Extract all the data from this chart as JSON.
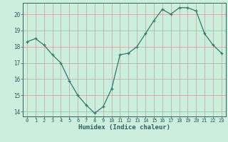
{
  "x": [
    0,
    1,
    2,
    3,
    4,
    5,
    6,
    7,
    8,
    9,
    10,
    11,
    12,
    13,
    14,
    15,
    16,
    17,
    18,
    19,
    20,
    21,
    22,
    23
  ],
  "y": [
    18.3,
    18.5,
    18.1,
    17.5,
    17.0,
    15.9,
    15.0,
    14.4,
    13.9,
    14.3,
    15.4,
    17.5,
    17.6,
    18.0,
    18.8,
    19.6,
    20.3,
    20.0,
    20.4,
    20.4,
    20.2,
    18.8,
    18.1,
    17.6
  ],
  "xlabel": "Humidex (Indice chaleur)",
  "xlim_min": -0.5,
  "xlim_max": 23.5,
  "ylim_min": 13.7,
  "ylim_max": 20.7,
  "yticks": [
    14,
    15,
    16,
    17,
    18,
    19,
    20
  ],
  "xticks": [
    0,
    1,
    2,
    3,
    4,
    5,
    6,
    7,
    8,
    9,
    10,
    11,
    12,
    13,
    14,
    15,
    16,
    17,
    18,
    19,
    20,
    21,
    22,
    23
  ],
  "line_color": "#2d7a6e",
  "bg_color": "#cceedd",
  "grid_major_color": "#c8a0a0",
  "grid_minor_color": "#c0d8d0",
  "text_color": "#2d6060",
  "spine_color": "#2d6060"
}
